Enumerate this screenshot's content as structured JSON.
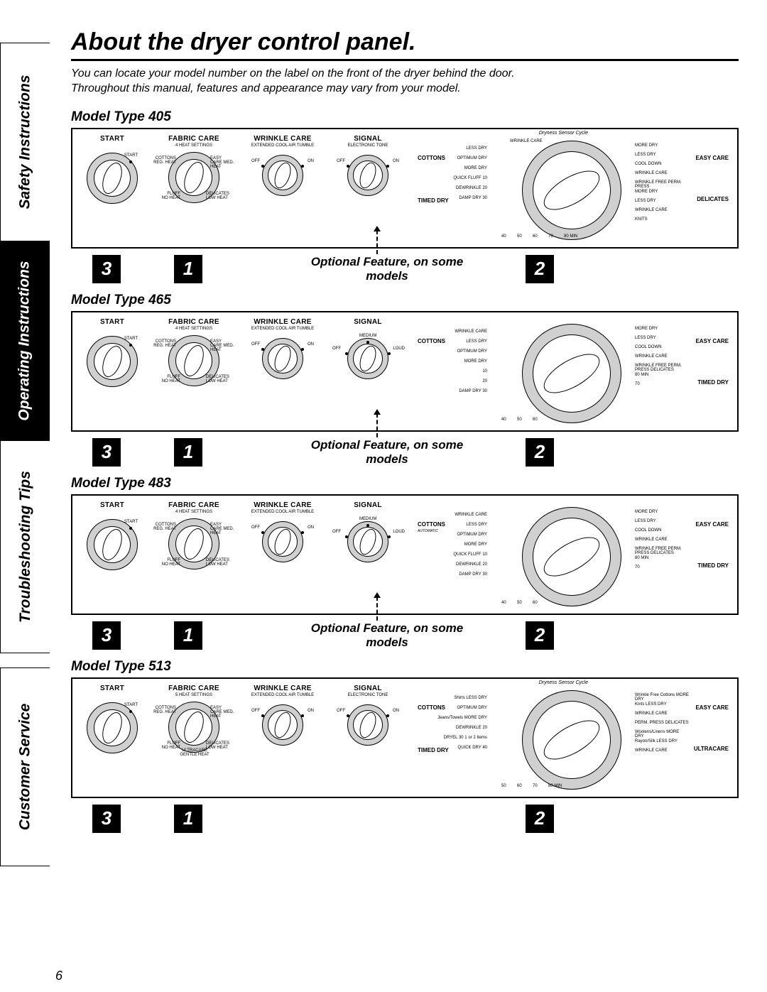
{
  "sidebar": {
    "tabs": [
      "Safety Instructions",
      "Operating Instructions",
      "Troubleshooting Tips",
      "Customer Service"
    ]
  },
  "title": "About the dryer control panel.",
  "intro_line1": "You can locate your model number on the label on the front of the dryer behind the door.",
  "intro_line2": "Throughout this manual, features and appearance may vary from your model.",
  "optional": "Optional Feature,\non some models",
  "page_number": "6",
  "callouts": {
    "n1": "1",
    "n2": "2",
    "n3": "3"
  },
  "models": [
    {
      "heading": "Model Type 405",
      "curve": "Dryness Sensor Cycle",
      "fabric_sub": "4 HEAT SETTINGS",
      "wrinkle_sub": "EXTENDED COOL AIR TUMBLE",
      "signal_sub": "ELECTRONIC TONE",
      "start_tick": "START",
      "fabric_ticks": [
        "COTTONS REG. HEAT",
        "EASY CARE MED. HEAT",
        "DELICATES LOW HEAT",
        "FLUFF NO HEAT"
      ],
      "wrinkle_ticks": [
        "OFF",
        "ON"
      ],
      "signal_ticks": [
        "OFF",
        "ON"
      ],
      "main_left": [
        "COTTONS",
        "TIMED DRY"
      ],
      "main_left_sub": [
        "LESS DRY",
        "OPTIMUM DRY",
        "MORE DRY",
        "QUICK FLUFF 10",
        "DEWRINKLE 20",
        "DAMP DRY 30"
      ],
      "main_right": [
        "EASY CARE",
        "DELICATES"
      ],
      "main_right_sub": [
        "MORE DRY",
        "LESS DRY",
        "COOL DOWN",
        "WRINKLE CARE",
        "WRINKLE FREE PERM. PRESS",
        "MORE DRY",
        "LESS DRY",
        "WRINKLE CARE",
        "KNITS"
      ],
      "main_top": "WRINKLE CARE",
      "main_bottom": [
        "40",
        "50",
        "60",
        "70",
        "80 MIN"
      ]
    },
    {
      "heading": "Model Type 465",
      "fabric_sub": "4 HEAT SETTINGS",
      "wrinkle_sub": "EXTENDED COOL AIR TUMBLE",
      "signal_sub": "",
      "start_tick": "START",
      "fabric_ticks": [
        "COTTONS REG. HEAT",
        "EASY CARE MED. HEAT",
        "DELICATES LOW HEAT",
        "FLUFF NO HEAT"
      ],
      "wrinkle_ticks": [
        "OFF",
        "ON"
      ],
      "signal_ticks": [
        "OFF",
        "MEDIUM",
        "LOUD"
      ],
      "main_left": [
        "COTTONS"
      ],
      "main_left_sub": [
        "WRINKLE CARE",
        "LESS DRY",
        "OPTIMUM DRY",
        "MORE DRY",
        "10",
        "20",
        "DAMP DRY 30"
      ],
      "main_right": [
        "EASY CARE",
        "TIMED DRY"
      ],
      "main_right_sub": [
        "MORE DRY",
        "LESS DRY",
        "COOL DOWN",
        "WRINKLE CARE",
        "WRINKLE FREE PERM. PRESS DELICATES",
        "80 MIN",
        "70"
      ],
      "main_bottom": [
        "40",
        "50",
        "60"
      ]
    },
    {
      "heading": "Model Type 483",
      "fabric_sub": "4 HEAT SETTINGS",
      "wrinkle_sub": "EXTENDED COOL AIR TUMBLE",
      "signal_sub": "",
      "start_tick": "START",
      "fabric_ticks": [
        "COTTONS REG. HEAT",
        "EASY CARE MED. HEAT",
        "DELICATES LOW HEAT",
        "FLUFF NO HEAT"
      ],
      "wrinkle_ticks": [
        "OFF",
        "ON"
      ],
      "signal_ticks": [
        "OFF",
        "MEDIUM",
        "LOUD"
      ],
      "main_left": [
        "COTTONS"
      ],
      "main_left_auto": "AUTOMATIC",
      "main_left_sub": [
        "WRINKLE CARE",
        "LESS DRY",
        "OPTIMUM DRY",
        "MORE DRY",
        "QUICK FLUFF 10",
        "DEWRINKLE 20",
        "DAMP DRY 30"
      ],
      "main_right": [
        "EASY CARE",
        "TIMED DRY"
      ],
      "main_right_sub": [
        "MORE DRY",
        "LESS DRY",
        "COOL DOWN",
        "WRINKLE CARE",
        "WRINKLE FREE PERM. PRESS DELICATES",
        "80 MIN",
        "70"
      ],
      "main_bottom": [
        "40",
        "50",
        "60"
      ]
    },
    {
      "heading": "Model Type 513",
      "curve": "Dryness Sensor Cycle",
      "fabric_sub": "5 HEAT SETTINGS",
      "wrinkle_sub": "EXTENDED COOL AIR TUMBLE",
      "signal_sub": "ELECTRONIC TONE",
      "start_tick": "START",
      "fabric_ticks": [
        "COTTONS REG. HEAT",
        "EASY CARE MED. HEAT",
        "DELICATES LOW HEAT",
        "ULTRACARE GENTLE HEAT",
        "FLUFF NO HEAT"
      ],
      "wrinkle_ticks": [
        "OFF",
        "ON"
      ],
      "signal_ticks": [
        "OFF",
        "ON"
      ],
      "main_left": [
        "COTTONS",
        "TIMED DRY"
      ],
      "main_left_sub": [
        "Shirts LESS DRY",
        "OPTIMUM DRY",
        "Jeans/Towels MORE DRY",
        "DEWRINKLE 20",
        "DRYEL 30 1 or 2 Items",
        "QUICK DRY 40"
      ],
      "main_right": [
        "EASY CARE",
        "ULTRACARE"
      ],
      "main_right_sub": [
        "Wrinkle Free Cottons MORE DRY",
        "Knits LESS DRY",
        "WRINKLE CARE",
        "PERM. PRESS DELICATES",
        "Woolens/Linens MORE DRY",
        "Rayon/Silk LESS DRY",
        "WRINKLE CARE"
      ],
      "main_bottom": [
        "50",
        "60",
        "70",
        "80 MIN"
      ]
    }
  ],
  "knob_labels": {
    "start": "START",
    "fabric": "FABRIC CARE",
    "wrinkle": "WRINKLE CARE",
    "signal": "SIGNAL"
  },
  "colors": {
    "black": "#000000",
    "white": "#ffffff",
    "grey": "#d0d0d0"
  }
}
